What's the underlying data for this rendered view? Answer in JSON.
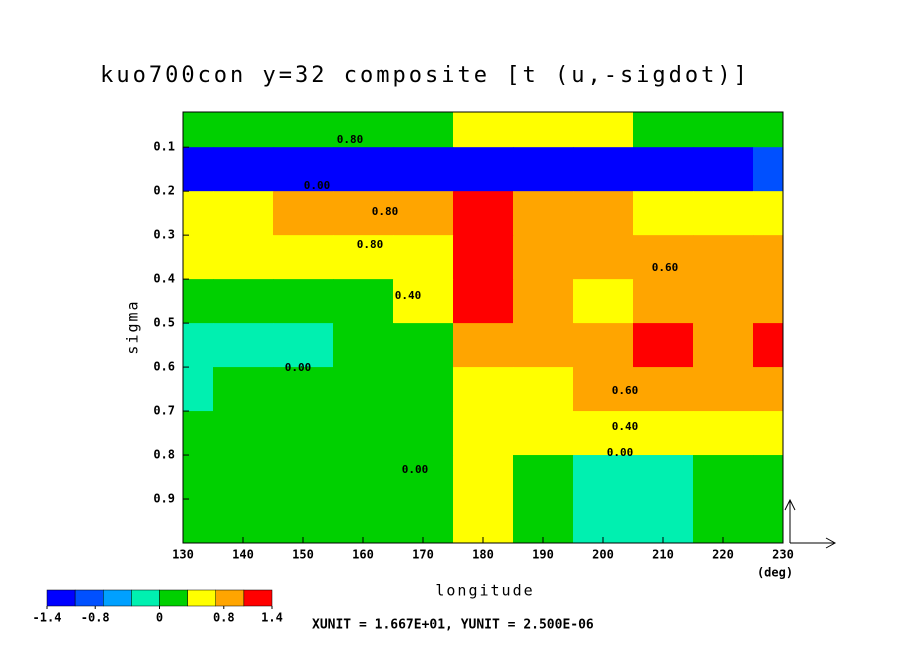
{
  "chart_data": {
    "type": "contour",
    "title": "kuo700con y=32 composite [t (u,-sigdot)]",
    "x_label": "longitude",
    "x_unit": "(deg)",
    "y_label": "sigma",
    "footer": "XUNIT = 1.667E+01, YUNIT = 2.500E-06",
    "x": [
      130,
      140,
      150,
      160,
      170,
      180,
      190,
      200,
      210,
      220,
      230
    ],
    "y": [
      0.05,
      0.15,
      0.25,
      0.35,
      0.45,
      0.55,
      0.65,
      0.75,
      0.85,
      0.95
    ],
    "z": [
      [
        0.2,
        0.2,
        0.2,
        0.2,
        0.3,
        0.5,
        0.5,
        0.4,
        0.3,
        0.2,
        0.2
      ],
      [
        -1.2,
        -1.2,
        -1.2,
        -1.2,
        -1.2,
        -1.2,
        -1.2,
        -1.2,
        -1.2,
        -1.1,
        -1.0
      ],
      [
        0.5,
        0.6,
        0.8,
        0.8,
        0.8,
        1.2,
        0.8,
        0.7,
        0.6,
        0.5,
        0.5
      ],
      [
        0.4,
        0.5,
        0.5,
        0.6,
        0.6,
        1.2,
        0.8,
        0.8,
        0.8,
        0.8,
        0.8
      ],
      [
        0.1,
        0.2,
        0.2,
        0.3,
        0.4,
        1.2,
        0.8,
        0.6,
        0.8,
        0.8,
        0.8
      ],
      [
        -0.1,
        -0.1,
        -0.1,
        0.1,
        0.2,
        1.0,
        0.8,
        0.8,
        1.1,
        0.8,
        1.1
      ],
      [
        -0.1,
        0.0,
        0.1,
        0.2,
        0.2,
        0.6,
        0.5,
        0.7,
        0.7,
        0.7,
        0.7
      ],
      [
        0.1,
        0.1,
        0.1,
        0.2,
        0.2,
        0.5,
        0.4,
        0.4,
        0.4,
        0.4,
        0.4
      ],
      [
        0.1,
        0.1,
        0.1,
        0.1,
        0.2,
        0.5,
        0.2,
        -0.1,
        -0.1,
        0.1,
        0.1
      ],
      [
        0.1,
        0.1,
        0.2,
        0.2,
        0.2,
        0.4,
        0.1,
        -0.1,
        -0.1,
        0.0,
        0.0
      ]
    ],
    "xlim": [
      130,
      230
    ],
    "xticks": [
      130,
      140,
      150,
      160,
      170,
      180,
      190,
      200,
      210,
      220,
      230
    ],
    "ylim": [
      0.02,
      1.0
    ],
    "yticks": [
      0.1,
      0.2,
      0.3,
      0.4,
      0.5,
      0.6,
      0.7,
      0.8,
      0.9
    ],
    "levels": [
      -1.4,
      -1.05,
      -0.7,
      -0.35,
      0,
      0.35,
      0.7,
      1.05,
      1.4
    ],
    "colors": [
      "#0000ff",
      "#0050ff",
      "#00a0ff",
      "#00f0b0",
      "#00d000",
      "#ffff00",
      "#ffa500",
      "#ff0000"
    ],
    "colorbar_ticks": [
      -1.4,
      -0.8,
      0,
      0.8,
      1.4
    ],
    "contour_labels": [
      "0.80",
      "0.80",
      "0.60",
      "0.40",
      "0.00",
      "0.00",
      "0.60",
      "0.40",
      "0.00",
      "0.00",
      "0.80"
    ]
  }
}
